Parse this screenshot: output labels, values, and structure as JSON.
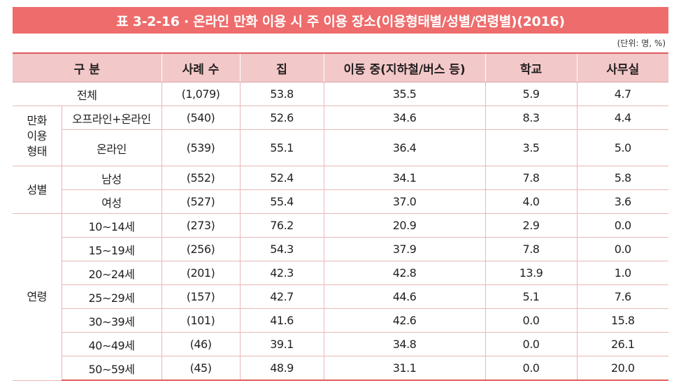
{
  "title": "표 3-2-16 · 온라인 만화 이용 시 주 이용 장소(이용형태별/성별/연령별)(2016)",
  "unit": "(단위: 명, %)",
  "headers": {
    "category": "구 분",
    "cases": "사례 수",
    "home": "집",
    "transit": "이동 중(지하철/버스 등)",
    "school": "학교",
    "office": "사무실"
  },
  "groups": {
    "type_line1": "만화",
    "type_line2": "이용",
    "type_line3": "형태",
    "gender": "성별",
    "age": "연령"
  },
  "rows": [
    {
      "label": "전체",
      "n": "(1,079)",
      "home": "53.8",
      "transit": "35.5",
      "school": "5.9",
      "office": "4.7"
    },
    {
      "label": "오프라인+온라인",
      "n": "(540)",
      "home": "52.6",
      "transit": "34.6",
      "school": "8.3",
      "office": "4.4"
    },
    {
      "label": "온라인",
      "n": "(539)",
      "home": "55.1",
      "transit": "36.4",
      "school": "3.5",
      "office": "5.0"
    },
    {
      "label": "남성",
      "n": "(552)",
      "home": "52.4",
      "transit": "34.1",
      "school": "7.8",
      "office": "5.8"
    },
    {
      "label": "여성",
      "n": "(527)",
      "home": "55.4",
      "transit": "37.0",
      "school": "4.0",
      "office": "3.6"
    },
    {
      "label": "10∼14세",
      "n": "(273)",
      "home": "76.2",
      "transit": "20.9",
      "school": "2.9",
      "office": "0.0"
    },
    {
      "label": "15∼19세",
      "n": "(256)",
      "home": "54.3",
      "transit": "37.9",
      "school": "7.8",
      "office": "0.0"
    },
    {
      "label": "20∼24세",
      "n": "(201)",
      "home": "42.3",
      "transit": "42.8",
      "school": "13.9",
      "office": "1.0"
    },
    {
      "label": "25∼29세",
      "n": "(157)",
      "home": "42.7",
      "transit": "44.6",
      "school": "5.1",
      "office": "7.6"
    },
    {
      "label": "30∼39세",
      "n": "(101)",
      "home": "41.6",
      "transit": "42.6",
      "school": "0.0",
      "office": "15.8"
    },
    {
      "label": "40∼49세",
      "n": "(46)",
      "home": "39.1",
      "transit": "34.8",
      "school": "0.0",
      "office": "26.1"
    },
    {
      "label": "50∼59세",
      "n": "(45)",
      "home": "48.9",
      "transit": "31.1",
      "school": "0.0",
      "office": "20.0"
    }
  ]
}
